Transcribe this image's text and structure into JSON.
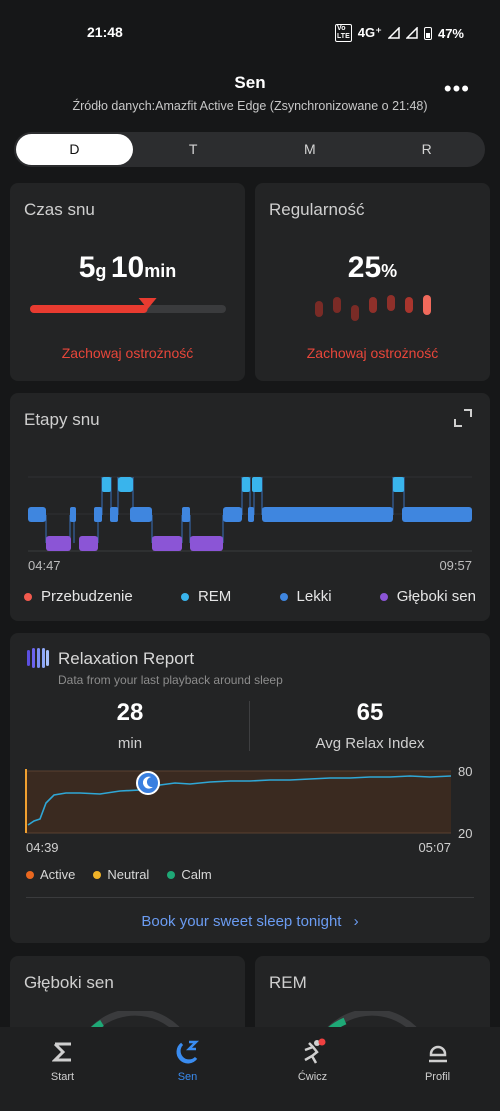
{
  "status_bar": {
    "time": "21:48",
    "network": "4G⁺",
    "volte": "Vo LTE",
    "battery": "47%"
  },
  "header": {
    "title": "Sen",
    "subtitle": "Źródło danych:Amazfit Active Edge (Zsynchronizowane o 21:48)"
  },
  "period_tabs": [
    "D",
    "T",
    "M",
    "R"
  ],
  "period_selected": "D",
  "czas_snu": {
    "title": "Czas snu",
    "hours": "5",
    "hours_unit": "g",
    "minutes": "10",
    "minutes_unit": "min",
    "progress": 0.6,
    "status": "Zachowaj ostrożność"
  },
  "regularnosc": {
    "title": "Regularność",
    "value": "25",
    "unit": "%",
    "status": "Zachowaj ostrożność"
  },
  "etapy": {
    "title": "Etapy snu",
    "start_time": "04:47",
    "end_time": "09:57",
    "legend": [
      {
        "label": "Przebudzenie",
        "color": "#f25a4e"
      },
      {
        "label": "REM",
        "color": "#39b4ec"
      },
      {
        "label": "Lekki",
        "color": "#3f86df"
      },
      {
        "label": "Głęboki sen",
        "color": "#8b55d6"
      }
    ]
  },
  "relaxation": {
    "title": "Relaxation Report",
    "subtitle": "Data from your last playback around sleep",
    "minutes_value": "28",
    "minutes_label": "min",
    "index_value": "65",
    "index_label": "Avg Relax Index",
    "chart_start": "04:39",
    "chart_end": "05:07",
    "y_top": "80",
    "y_bottom": "20",
    "legend": [
      {
        "label": "Active",
        "color": "#e9671f"
      },
      {
        "label": "Neutral",
        "color": "#f0b328"
      },
      {
        "label": "Calm",
        "color": "#1ea876"
      }
    ],
    "link": "Book your sweet sleep tonight"
  },
  "bottom_cards": {
    "left_title": "Głęboki sen",
    "right_title": "REM"
  },
  "nav": [
    {
      "label": "Start",
      "icon": "sigma-icon"
    },
    {
      "label": "Sen",
      "icon": "sleep-icon"
    },
    {
      "label": "Ćwicz",
      "icon": "workout-icon"
    },
    {
      "label": "Profil",
      "icon": "profile-icon"
    }
  ],
  "nav_active": "Sen"
}
